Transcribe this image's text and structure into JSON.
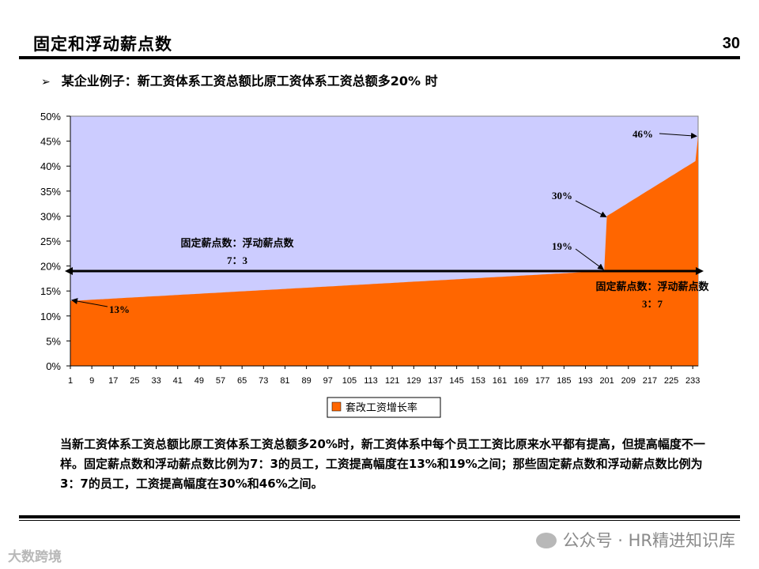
{
  "slide": {
    "title": "固定和浮动薪点数",
    "page_number": "30",
    "bullet_text": "某企业例子：新工资体系工资总额比原工资体系工资总额多20% 时",
    "paragraph": "当新工资体系工资总额比原工资体系工资总额多20%时，新工资体系中每个员工工资比原来水平都有提高，但提高幅度不一样。固定薪点数和浮动薪点数比例为7：3的员工，工资提高幅度在13%和19%之间；那些固定薪点数和浮动薪点数比例为3：7的员工，工资提高幅度在30%和46%之间。",
    "watermark_text": "公众号 · HR精进知识库",
    "corner_logo_text": "大数跨境"
  },
  "colors": {
    "plot_bg": "#ccccff",
    "area_fill": "#ff6600",
    "legend_swatch": "#ff6600"
  },
  "icons": {
    "bullet": "arrowhead-bullet-icon",
    "watermark": "wechat-icon"
  },
  "chart_data": {
    "type": "area",
    "n_points": 235,
    "x_tick_labels": [
      "1",
      "9",
      "17",
      "25",
      "33",
      "41",
      "49",
      "57",
      "65",
      "73",
      "81",
      "89",
      "97",
      "105",
      "113",
      "121",
      "129",
      "137",
      "145",
      "153",
      "161",
      "169",
      "177",
      "185",
      "193",
      "201",
      "209",
      "217",
      "225",
      "233"
    ],
    "y_tick_labels": [
      "0%",
      "5%",
      "10%",
      "15%",
      "20%",
      "25%",
      "30%",
      "35%",
      "40%",
      "45%",
      "50%"
    ],
    "ylim": [
      0,
      50
    ],
    "y_unit": "%",
    "series": [
      {
        "name": "套改工资增长率",
        "segments": [
          {
            "x_start": 1,
            "x_end": 200,
            "y_start": 13,
            "y_end": 19
          },
          {
            "x_start": 201,
            "x_end": 234,
            "y_start": 30,
            "y_end": 41
          },
          {
            "x_start": 235,
            "x_end": 235,
            "y_start": 46,
            "y_end": 46
          }
        ]
      }
    ],
    "annotations": {
      "label_46": "46%",
      "label_30": "30%",
      "label_19": "19%",
      "label_13": "13%",
      "left_ratio_line1": "固定薪点数：浮动薪点数",
      "left_ratio_line2": "7：3",
      "right_ratio_line1": "固定薪点数：浮动薪点数",
      "right_ratio_line2": "3：7"
    },
    "legend_label": "套改工资增长率",
    "legend_position": "bottom"
  }
}
